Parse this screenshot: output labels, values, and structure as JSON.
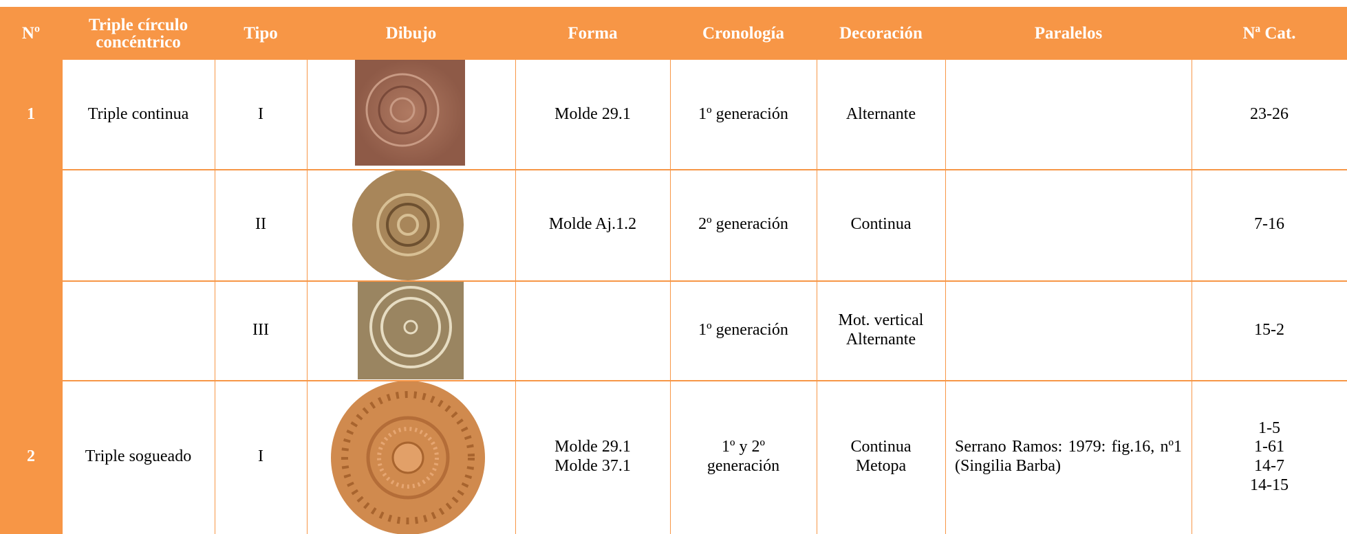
{
  "table": {
    "header": [
      "Nº",
      "Triple círculo concéntrico",
      "Tipo",
      "Dibujo",
      "Forma",
      "Cronología",
      "Decoración",
      "Paralelos",
      "Nª Cat."
    ],
    "rows": [
      {
        "no": "1",
        "circle": "Triple continua",
        "tipo": "I",
        "forma": [
          "Molde 29.1"
        ],
        "crono": [
          "1º generación"
        ],
        "deco": [
          "Alternante"
        ],
        "cat": [
          "23-26"
        ]
      },
      {
        "tipo": "II",
        "forma": [
          "Molde Aj.1.2"
        ],
        "crono": [
          "2º generación"
        ],
        "deco": [
          "Continua"
        ],
        "cat": [
          "7-16"
        ]
      },
      {
        "tipo": "III",
        "crono": [
          "1º generación"
        ],
        "deco": [
          "Mot. vertical",
          "Alternante"
        ],
        "cat": [
          "15-2"
        ]
      },
      {
        "no": "2",
        "circle": "Triple sogueado",
        "tipo": "I",
        "forma": [
          "Molde 29.1",
          "Molde 37.1"
        ],
        "crono": [
          "1º y 2º",
          "generación"
        ],
        "deco": [
          "Continua",
          "Metopa"
        ],
        "paralelos": "Serrano Ramos: 1979: fig.16, nº1 (Singilia Barba)",
        "cat": [
          "1-5",
          "1-61",
          "14-7",
          "14-15"
        ]
      }
    ]
  }
}
